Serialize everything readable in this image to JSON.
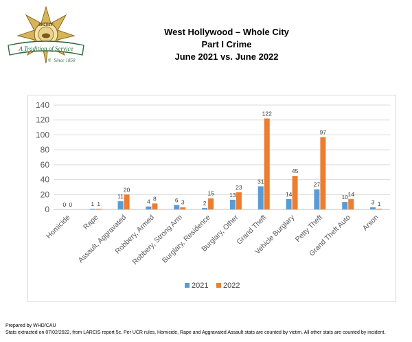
{
  "logo": {
    "badge_text": "SHERIFF",
    "banner_text": "A Tradition of Service",
    "since_text": "Since 1850",
    "colors": {
      "gold": "#c8a24a",
      "green": "#2e6b3a",
      "brown": "#7a5a1e"
    }
  },
  "header": {
    "title": "West Hollywood – Whole City",
    "subtitle": "Part I Crime",
    "period": "June 2021 vs. June 2022"
  },
  "chart_data": {
    "type": "bar",
    "categories": [
      "Homicide",
      "Rape",
      "Assault, Aggravated",
      "Robbery, Armed",
      "Robbery, Strong Arm",
      "Burglary, Residence",
      "Burglary, Other",
      "Grand Theft",
      "Vehicle Burglary",
      "Petty Theft",
      "Grand Theft Auto",
      "Arson"
    ],
    "series": [
      {
        "name": "2021",
        "color": "#5b9bd5",
        "values": [
          0,
          1,
          11,
          4,
          6,
          2,
          13,
          31,
          14,
          27,
          10,
          3
        ]
      },
      {
        "name": "2022",
        "color": "#ed7d31",
        "values": [
          0,
          1,
          20,
          8,
          3,
          15,
          23,
          122,
          45,
          97,
          14,
          1
        ]
      }
    ],
    "ylim": [
      0,
      140
    ],
    "yticks": [
      "0",
      "20",
      "40",
      "60",
      "80",
      "100",
      "120",
      "140"
    ],
    "grid": true,
    "legend": "bottom"
  },
  "footer": {
    "line1": "Prepared by WHD/CAU",
    "line2": "Stats extracted on 07/02/2022, from LARCIS report 5c. Per UCR rules, Homicide, Rape and Aggravated Assault stats are counted by victim. All other stats are counted by incident."
  }
}
